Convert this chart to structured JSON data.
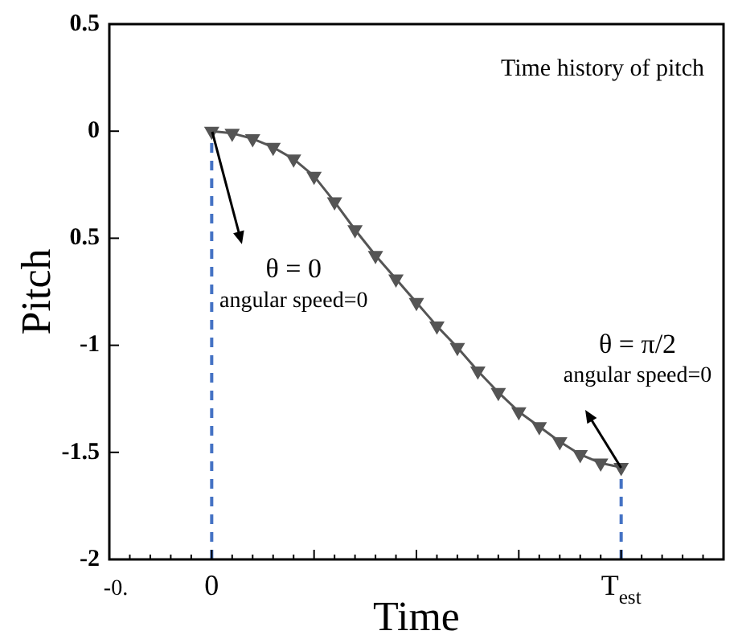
{
  "chart_data": {
    "type": "line",
    "title": "Time history of pitch",
    "xlabel": "Time",
    "ylabel": "Pitch",
    "categories": [
      "-0.",
      null,
      null,
      null,
      null,
      "0",
      null,
      null,
      null,
      null,
      null,
      null,
      null,
      null,
      null,
      null,
      null,
      null,
      null,
      null,
      null,
      null,
      null,
      null,
      null,
      "T$_{est}$",
      null,
      null,
      null,
      null,
      null
    ],
    "series": [
      {
        "color": "#555555",
        "values": [
          null,
          null,
          null,
          null,
          null,
          0,
          -0.01,
          -0.035,
          -0.075,
          -0.13,
          -0.21,
          -0.33,
          -0.46,
          -0.58,
          -0.69,
          -0.8,
          -0.91,
          -1.01,
          -1.12,
          -1.22,
          -1.31,
          -1.38,
          -1.45,
          -1.51,
          -1.55,
          -1.57,
          null,
          null,
          null,
          null,
          null
        ]
      }
    ],
    "ylim": [
      -2,
      0.5
    ],
    "yticks": [
      0.5,
      0,
      {
        "value": -0.5,
        "label": "0.5"
      },
      -1,
      -1.5,
      -2
    ],
    "ref_lines": [
      {
        "axis": "x",
        "value": "0",
        "label": null,
        "color": "#4472c4",
        "line_style": "dashed"
      },
      {
        "axis": "x",
        "value": "T$_{est}$",
        "label": null,
        "color": "#4472c4",
        "line_style": "dashed"
      }
    ],
    "annotations": [
      {
        "text": "θ = 0\nangular speed=0",
        "x": "0",
        "y": 0
      },
      {
        "text": "θ = π/2\nangular speed=0",
        "x": "T$_{est}$",
        "y": -1.57
      }
    ],
    "marker": "triangle",
    "line_style": "solid",
    "legend": false,
    "grid": false
  }
}
